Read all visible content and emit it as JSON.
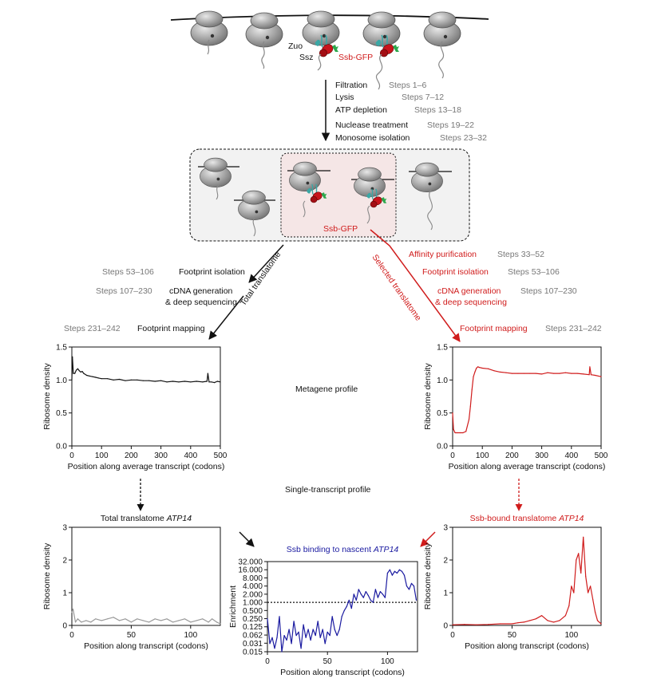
{
  "colors": {
    "black": "#111111",
    "red": "#d01c1c",
    "blue": "#1a1aa0",
    "grey_text": "#777777",
    "grey_line": "#8a8a8a",
    "ribosome": "#9a9a9a"
  },
  "top": {
    "zuo": "Zuo",
    "ssz": "Ssz",
    "ssb_gfp": "Ssb-GFP",
    "ssb_gfp_box": "Ssb-GFP",
    "steps": [
      {
        "label": "Filtration",
        "steps": "Steps 1–6"
      },
      {
        "label": "Lysis",
        "steps": "Steps 7–12"
      },
      {
        "label": "ATP depletion",
        "steps": "Steps 13–18"
      },
      {
        "label": "Nuclease treatment",
        "steps": "Steps 19–22"
      },
      {
        "label": "Monosome isolation",
        "steps": "Steps 23–32"
      }
    ]
  },
  "left_branch": {
    "diag_label": "Total translatome",
    "steps": [
      {
        "label": "Footprint isolation",
        "steps": "Steps 53–106"
      },
      {
        "label": "cDNA generation",
        "label2": "& deep sequencing",
        "steps": "Steps 107–230"
      },
      {
        "label": "Footprint mapping",
        "steps": "Steps 231–242"
      }
    ]
  },
  "right_branch": {
    "diag_label": "Selected translatome",
    "steps": [
      {
        "label": "Affinity purification",
        "steps": "Steps 33–52"
      },
      {
        "label": "Footprint isolation",
        "steps": "Steps 53–106"
      },
      {
        "label": "cDNA generation",
        "label2": "& deep sequencing",
        "steps": "Steps 107–230"
      },
      {
        "label": "Footprint mapping",
        "steps": "Steps 231–242"
      }
    ]
  },
  "middle": {
    "metagene": "Metagene profile",
    "single": "Single-transcript profile"
  },
  "chart_data": [
    {
      "id": "meta_total",
      "type": "line",
      "ylabel": "Ribosome density",
      "xlabel": "Position along average transcript (codons)",
      "xlim": [
        0,
        500
      ],
      "ylim": [
        0,
        1.5
      ],
      "xticks": [
        0,
        100,
        200,
        300,
        400,
        500
      ],
      "yticks": [
        "0.0",
        "0.5",
        "1.0",
        "1.5"
      ],
      "color": "#111111",
      "x": [
        0,
        2,
        5,
        10,
        15,
        20,
        25,
        30,
        35,
        40,
        50,
        60,
        70,
        80,
        90,
        100,
        120,
        140,
        160,
        180,
        200,
        220,
        240,
        260,
        280,
        300,
        320,
        340,
        360,
        380,
        400,
        420,
        440,
        455,
        458,
        462,
        470,
        480,
        490,
        500
      ],
      "y": [
        1.0,
        1.35,
        1.1,
        1.1,
        1.15,
        1.17,
        1.14,
        1.12,
        1.13,
        1.1,
        1.07,
        1.06,
        1.05,
        1.04,
        1.03,
        1.02,
        1.02,
        1.0,
        1.01,
        0.99,
        1.0,
        1.0,
        0.99,
        0.99,
        0.98,
        0.99,
        0.97,
        0.98,
        0.97,
        0.98,
        0.97,
        0.98,
        0.97,
        0.98,
        1.1,
        0.97,
        0.97,
        0.96,
        0.98,
        0.97
      ]
    },
    {
      "id": "meta_selected",
      "type": "line",
      "ylabel": "Ribosome density",
      "xlabel": "Position along average transcript (codons)",
      "xlim": [
        0,
        500
      ],
      "ylim": [
        0,
        1.5
      ],
      "xticks": [
        0,
        100,
        200,
        300,
        400,
        500
      ],
      "yticks": [
        "0.0",
        "0.5",
        "1.0",
        "1.5"
      ],
      "color": "#d01c1c",
      "x": [
        0,
        3,
        8,
        15,
        25,
        35,
        45,
        55,
        60,
        65,
        70,
        75,
        80,
        85,
        90,
        100,
        120,
        140,
        160,
        180,
        200,
        220,
        240,
        260,
        280,
        300,
        320,
        340,
        360,
        380,
        400,
        420,
        440,
        460,
        462,
        466,
        480,
        500
      ],
      "y": [
        0.5,
        0.25,
        0.2,
        0.2,
        0.2,
        0.2,
        0.22,
        0.4,
        0.6,
        0.85,
        1.05,
        1.12,
        1.18,
        1.2,
        1.19,
        1.18,
        1.17,
        1.14,
        1.12,
        1.11,
        1.1,
        1.1,
        1.1,
        1.1,
        1.1,
        1.09,
        1.11,
        1.1,
        1.1,
        1.11,
        1.1,
        1.1,
        1.09,
        1.08,
        1.2,
        1.08,
        1.07,
        1.05
      ]
    },
    {
      "id": "single_total",
      "type": "line",
      "title": "Total translatome ",
      "title_gene": "ATP14",
      "ylabel": "Ribosome density",
      "xlabel": "Position along transcript (codons)",
      "xlim": [
        0,
        125
      ],
      "ylim": [
        0,
        3
      ],
      "xticks": [
        0,
        50,
        100
      ],
      "yticks": [
        "0",
        "1",
        "2",
        "3"
      ],
      "color": "#999999",
      "x": [
        0,
        1,
        3,
        5,
        8,
        12,
        16,
        20,
        25,
        30,
        35,
        40,
        45,
        50,
        55,
        60,
        65,
        70,
        75,
        80,
        85,
        90,
        95,
        100,
        105,
        110,
        115,
        118,
        122,
        125
      ],
      "y": [
        0.4,
        0.5,
        0.1,
        0.2,
        0.1,
        0.15,
        0.1,
        0.2,
        0.15,
        0.2,
        0.25,
        0.15,
        0.2,
        0.1,
        0.2,
        0.15,
        0.1,
        0.2,
        0.15,
        0.2,
        0.1,
        0.15,
        0.2,
        0.1,
        0.15,
        0.2,
        0.1,
        0.2,
        0.1,
        0.05
      ]
    },
    {
      "id": "enrichment",
      "type": "line",
      "title": "Ssb binding to nascent ",
      "title_gene": "ATP14",
      "ylabel": "Enrichment",
      "xlabel": "Position along transcript (codons)",
      "xlim": [
        0,
        125
      ],
      "ylim": [
        0.015,
        32
      ],
      "yscale": "log2",
      "xticks": [
        0,
        50,
        100
      ],
      "yticks": [
        "32.000",
        "16.000",
        "8.000",
        "4.000",
        "2.000",
        "1.000",
        "0.500",
        "0.250",
        "0.125",
        "0.062",
        "0.031",
        "0.015"
      ],
      "reference_line": 1.0,
      "color": "#1a1aa0",
      "x": [
        0,
        2,
        4,
        6,
        8,
        10,
        12,
        14,
        16,
        18,
        20,
        22,
        24,
        26,
        28,
        30,
        32,
        34,
        36,
        38,
        40,
        42,
        44,
        46,
        48,
        50,
        52,
        54,
        56,
        58,
        60,
        62,
        64,
        66,
        68,
        70,
        72,
        74,
        76,
        78,
        80,
        82,
        84,
        86,
        88,
        90,
        92,
        94,
        96,
        98,
        100,
        102,
        104,
        106,
        108,
        110,
        112,
        114,
        116,
        118,
        120,
        122,
        124
      ],
      "y": [
        0.25,
        0.03,
        0.05,
        0.02,
        0.05,
        0.3,
        0.015,
        0.06,
        0.04,
        0.1,
        0.03,
        0.2,
        0.06,
        0.08,
        0.02,
        0.15,
        0.05,
        0.1,
        0.04,
        0.1,
        0.06,
        0.2,
        0.05,
        0.1,
        0.03,
        0.08,
        0.06,
        0.3,
        0.1,
        0.06,
        0.1,
        0.3,
        0.5,
        0.7,
        1.2,
        0.6,
        2.0,
        1.2,
        3.0,
        2.0,
        1.5,
        2.5,
        1.8,
        1.2,
        1.0,
        3.0,
        1.5,
        2.5,
        2.0,
        1.5,
        12,
        16,
        10,
        14,
        12,
        16,
        14,
        10,
        4,
        3,
        5,
        4,
        1.2
      ]
    },
    {
      "id": "single_selected",
      "type": "line",
      "title": "Ssb-bound translatome ",
      "title_gene": "ATP14",
      "ylabel": "Ribosome density",
      "xlabel": "Position along transcript (codons)",
      "xlim": [
        0,
        125
      ],
      "ylim": [
        0,
        3
      ],
      "xticks": [
        0,
        50,
        100
      ],
      "yticks": [
        "0",
        "1",
        "2",
        "3"
      ],
      "color": "#d01c1c",
      "x": [
        0,
        10,
        20,
        30,
        40,
        50,
        55,
        60,
        65,
        70,
        75,
        80,
        85,
        90,
        95,
        98,
        100,
        102,
        104,
        106,
        108,
        110,
        112,
        114,
        116,
        118,
        120,
        122,
        125
      ],
      "y": [
        0.02,
        0.03,
        0.02,
        0.03,
        0.05,
        0.05,
        0.08,
        0.1,
        0.15,
        0.2,
        0.3,
        0.15,
        0.1,
        0.15,
        0.3,
        0.6,
        1.2,
        1.0,
        2.0,
        2.2,
        1.6,
        2.7,
        1.5,
        1.0,
        1.2,
        0.8,
        0.4,
        0.15,
        0.05
      ]
    }
  ]
}
